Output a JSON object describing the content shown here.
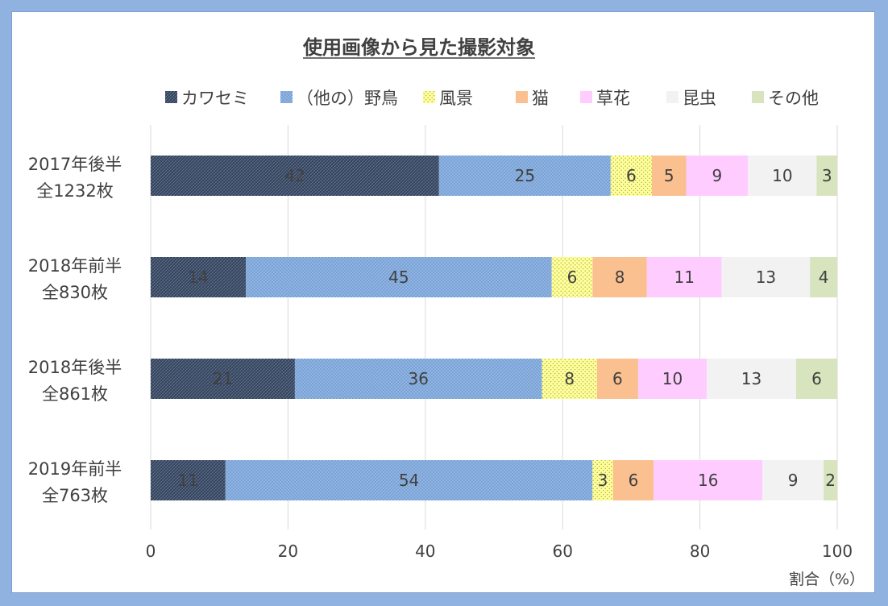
{
  "chart_data": {
    "type": "bar",
    "orientation": "horizontal",
    "stacked": true,
    "title": "使用画像から見た撮影対象",
    "xlabel": "割合（%）",
    "ylabel": "",
    "xlim": [
      0,
      100
    ],
    "xticks": [
      "0",
      "20",
      "40",
      "60",
      "80",
      "100"
    ],
    "grid": true,
    "legend_position": "top",
    "categories": [
      [
        "2017年後半",
        "全1232枚"
      ],
      [
        "2018年前半",
        "全830枚"
      ],
      [
        "2018年後半",
        "全861枚"
      ],
      [
        "2019年前半",
        "全763枚"
      ]
    ],
    "series": [
      {
        "name": "カワセミ",
        "color": "#44546a",
        "pattern": "crosshatch-dark",
        "values": [
          42,
          14,
          21,
          11
        ]
      },
      {
        "name": "（他の）野鳥",
        "color": "#8eb4e3",
        "pattern": "dots-blue",
        "values": [
          25,
          45,
          36,
          54
        ]
      },
      {
        "name": "風景",
        "color": "#ffff99",
        "pattern": "dots-yellow",
        "values": [
          6,
          6,
          8,
          3
        ]
      },
      {
        "name": "猫",
        "color": "#fac090",
        "pattern": "solid",
        "values": [
          5,
          8,
          6,
          6
        ]
      },
      {
        "name": "草花",
        "color": "#ffccff",
        "pattern": "solid",
        "values": [
          9,
          11,
          10,
          16
        ]
      },
      {
        "name": "昆虫",
        "color": "#f2f2f2",
        "pattern": "solid",
        "values": [
          10,
          13,
          13,
          9
        ]
      },
      {
        "name": "その他",
        "color": "#d7e4bd",
        "pattern": "solid",
        "values": [
          3,
          4,
          6,
          2
        ]
      }
    ]
  }
}
